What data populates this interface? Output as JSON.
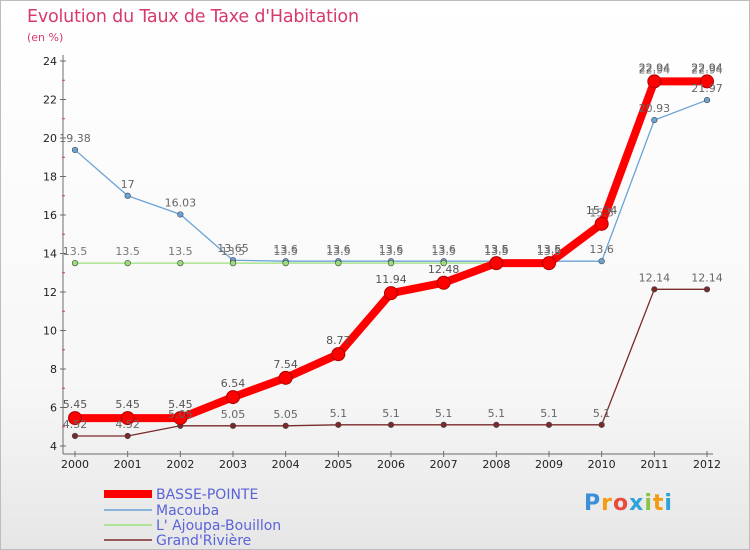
{
  "header": {
    "title": "Evolution du Taux de Taxe d'Habitation",
    "unit": "(en %)"
  },
  "logo": {
    "text": "Proxiti",
    "letters": [
      "P",
      "r",
      "o",
      "x",
      "i",
      "t",
      "i"
    ],
    "colors": [
      "#3a8fd8",
      "#f39c12",
      "#e74c3c",
      "#2ea3d9",
      "#8bc34a",
      "#f39c12",
      "#2ea3d9"
    ]
  },
  "chart_data": {
    "type": "line",
    "x": [
      "2000",
      "2001",
      "2002",
      "2003",
      "2004",
      "2005",
      "2006",
      "2007",
      "2008",
      "2009",
      "2010",
      "2011",
      "2012"
    ],
    "ylim": [
      4,
      24
    ],
    "yticks": [
      "4",
      "6",
      "8",
      "10",
      "12",
      "14",
      "16",
      "18",
      "20",
      "22",
      "24"
    ],
    "grid": false,
    "legend_position": "bottom-left",
    "series": [
      {
        "name": "BASSE-POINTE",
        "color": "#ff0000",
        "values": [
          5.45,
          5.45,
          5.45,
          6.54,
          7.54,
          8.77,
          11.94,
          12.48,
          13.5,
          13.5,
          15.54,
          22.94,
          22.94
        ],
        "labels": [
          "5.45",
          "5.45",
          "5.45",
          "6.54",
          "7.54",
          "8.77",
          "11.94",
          "12.48",
          "13.5",
          "13.5",
          "15.54",
          "22.94",
          "22.94"
        ]
      },
      {
        "name": "Macouba",
        "color": "#6aa3d6",
        "values": [
          19.38,
          17,
          16.03,
          13.65,
          13.6,
          13.6,
          13.6,
          13.6,
          13.6,
          13.6,
          13.6,
          20.93,
          21.97
        ],
        "labels": [
          "19.38",
          "17",
          "16.03",
          "13.65",
          "13.6",
          "13.6",
          "13.6",
          "13.6",
          "13.6",
          "13.6",
          "13.6",
          "20.93",
          "21.97"
        ]
      },
      {
        "name": "L' Ajoupa-Bouillon",
        "color": "#9ae07a",
        "values": [
          13.5,
          13.5,
          13.5,
          13.5,
          13.5,
          13.5,
          13.5,
          13.5,
          13.5,
          13.5,
          15.5,
          22.94,
          22.94
        ],
        "labels": [
          "13.5",
          "13.5",
          "13.5",
          "13.5",
          "13.5",
          "13.5",
          "13.5",
          "13.5",
          "13.5",
          "13.5",
          "15.5",
          "22.94",
          "22.94"
        ]
      },
      {
        "name": "Grand'Rivière",
        "color": "#7a2a2a",
        "values": [
          4.52,
          4.52,
          5.05,
          5.05,
          5.05,
          5.1,
          5.1,
          5.1,
          5.1,
          5.1,
          5.1,
          12.14,
          12.14
        ],
        "labels": [
          "4.52",
          "4.52",
          "5.05",
          "5.05",
          "5.05",
          "5.1",
          "5.1",
          "5.1",
          "5.1",
          "5.1",
          "5.1",
          "12.14",
          "12.14"
        ]
      }
    ]
  }
}
